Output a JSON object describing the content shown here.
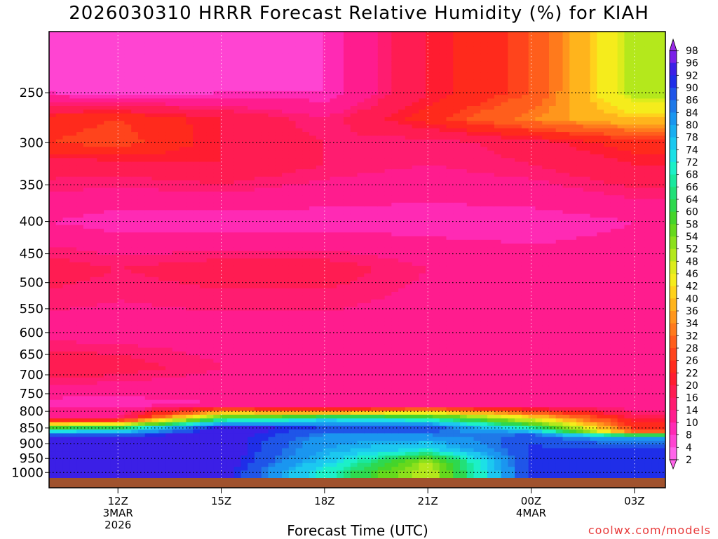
{
  "chart_data": {
    "type": "heatmap",
    "title": "2026030310 HRRR Forecast Relative Humidity (%) for KIAH",
    "xlabel": "Forecast Time (UTC)",
    "ylabel": "",
    "x_ticks": [
      {
        "label": "12Z",
        "sub": [
          "3MAR",
          "2026"
        ],
        "hour": 12
      },
      {
        "label": "15Z",
        "sub": [],
        "hour": 15
      },
      {
        "label": "18Z",
        "sub": [],
        "hour": 18
      },
      {
        "label": "21Z",
        "sub": [],
        "hour": 21
      },
      {
        "label": "00Z",
        "sub": [
          "4MAR"
        ],
        "hour": 24
      },
      {
        "label": "03Z",
        "sub": [],
        "hour": 27
      }
    ],
    "xlim_hours": [
      10.0,
      27.9
    ],
    "y_ticks": [
      250,
      300,
      350,
      400,
      450,
      500,
      550,
      600,
      650,
      700,
      750,
      800,
      850,
      900,
      950,
      1000
    ],
    "ylim_hPa": [
      200,
      1020
    ],
    "y_scale": "log",
    "colorbar": {
      "labels": [
        98,
        96,
        92,
        90,
        86,
        84,
        80,
        78,
        74,
        72,
        68,
        66,
        64,
        60,
        58,
        54,
        52,
        48,
        46,
        42,
        40,
        36,
        34,
        32,
        28,
        26,
        22,
        20,
        16,
        14,
        10,
        8,
        4,
        2
      ],
      "colors": [
        "#9a2be6",
        "#7a1fe8",
        "#3b1fe6",
        "#1f2ee8",
        "#1f55e8",
        "#1f79e8",
        "#1a96f0",
        "#1aaef0",
        "#1cc8f0",
        "#1ce0e6",
        "#1cf0c8",
        "#1ae89e",
        "#22e078",
        "#2ed84e",
        "#44d42a",
        "#66d81c",
        "#8ce01c",
        "#b4e81c",
        "#dcec1c",
        "#f5ec1c",
        "#ffd21c",
        "#ffb41c",
        "#ff961c",
        "#ff7a1c",
        "#ff5e1c",
        "#ff441c",
        "#ff2a1c",
        "#ff1c30",
        "#ff1c52",
        "#ff1c70",
        "#ff1c8e",
        "#ff2ab4",
        "#ff44d2",
        "#ff66ea"
      ]
    },
    "series": [
      {
        "hour": 10,
        "rh_by_level": {
          "250": 8,
          "275": 24,
          "300": 26,
          "325": 18,
          "400": 10,
          "475": 18,
          "600": 12,
          "680": 20,
          "780": 8,
          "820": 14,
          "850": 60,
          "880": 96,
          "920": 96,
          "960": 96,
          "1000": 94
        }
      },
      {
        "hour": 12,
        "rh_by_level": {
          "250": 6,
          "275": 26,
          "300": 28,
          "325": 18,
          "400": 8,
          "475": 16,
          "600": 12,
          "680": 18,
          "780": 8,
          "820": 14,
          "850": 64,
          "880": 96,
          "920": 96,
          "960": 95,
          "1000": 94
        }
      },
      {
        "hour": 15,
        "rh_by_level": {
          "250": 8,
          "275": 20,
          "300": 20,
          "325": 20,
          "400": 8,
          "475": 18,
          "600": 12,
          "680": 14,
          "780": 10,
          "820": 60,
          "850": 96,
          "880": 96,
          "920": 96,
          "960": 96,
          "1000": 95
        }
      },
      {
        "hour": 18,
        "rh_by_level": {
          "250": 8,
          "275": 14,
          "300": 16,
          "325": 16,
          "400": 8,
          "475": 18,
          "600": 12,
          "680": 14,
          "780": 10,
          "800": 30,
          "820": 70,
          "850": 90,
          "880": 82,
          "920": 80,
          "960": 76,
          "1000": 70
        }
      },
      {
        "hour": 21,
        "rh_by_level": {
          "250": 20,
          "275": 24,
          "300": 14,
          "325": 14,
          "400": 8,
          "475": 14,
          "600": 12,
          "680": 14,
          "780": 10,
          "820": 66,
          "850": 90,
          "880": 82,
          "920": 72,
          "960": 52,
          "1000": 48
        }
      },
      {
        "hour": 24,
        "rh_by_level": {
          "250": 28,
          "275": 34,
          "300": 18,
          "325": 16,
          "400": 8,
          "475": 12,
          "600": 12,
          "680": 12,
          "780": 10,
          "840": 60,
          "870": 86,
          "900": 90,
          "960": 92,
          "1000": 92
        }
      },
      {
        "hour": 27,
        "rh_by_level": {
          "250": 50,
          "275": 40,
          "300": 24,
          "325": 20,
          "400": 10,
          "475": 12,
          "600": 12,
          "680": 12,
          "780": 10,
          "860": 28,
          "880": 80,
          "920": 90,
          "960": 92,
          "1000": 92
        }
      }
    ],
    "grid": "dotted",
    "legend": "right"
  },
  "title_text": "2026030310 HRRR Forecast Relative Humidity (%) for KIAH",
  "x_axis_title": "Forecast Time (UTC)",
  "credit": "coolwx.com/models"
}
